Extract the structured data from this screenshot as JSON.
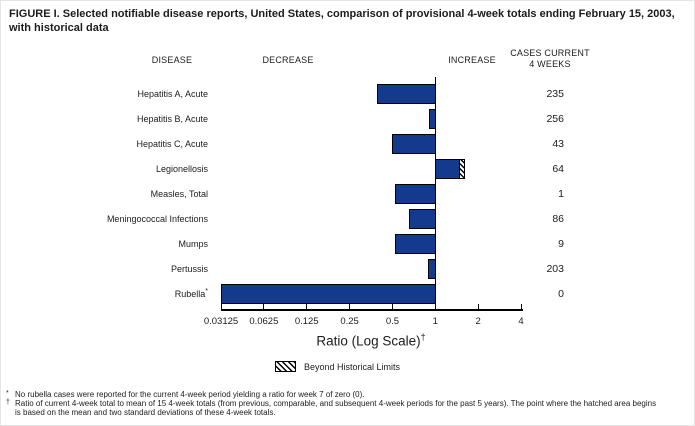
{
  "figure": {
    "title_line1": "FIGURE I. Selected notifiable disease reports, United States, comparison of provisional 4-week totals ending February 15, 2003,",
    "title_line2": "with historical data"
  },
  "columns": {
    "disease": "DISEASE",
    "decrease": "DECREASE",
    "increase": "INCREASE",
    "cases_line1": "CASES CURRENT",
    "cases_line2": "4 WEEKS"
  },
  "chart_data": {
    "type": "bar",
    "orientation": "horizontal",
    "scale": "log2",
    "title": "FIGURE I. Selected notifiable disease reports, United States, comparison of provisional 4-week totals ending February 15, 2003, with historical data",
    "xlabel": "Ratio (Log Scale)",
    "xlabel_superscript": "†",
    "xlim": [
      0.03125,
      4
    ],
    "baseline_ratio": 1,
    "axis": {
      "ticks": [
        0.03125,
        0.0625,
        0.125,
        0.25,
        0.5,
        1,
        2,
        4
      ],
      "tick_labels": [
        "0.03125",
        "0.0625",
        "0.125",
        "0.25",
        "0.5",
        "1",
        "2",
        "4"
      ]
    },
    "rows": [
      {
        "disease": "Hepatitis A, Acute",
        "ratio": 0.39,
        "cases": 235
      },
      {
        "disease": "Hepatitis B, Acute",
        "ratio": 0.91,
        "cases": 256
      },
      {
        "disease": "Hepatitis C, Acute",
        "ratio": 0.5,
        "cases": 43
      },
      {
        "disease": "Legionellosis",
        "ratio": 1.63,
        "hatch_start": 1.5,
        "cases": 64
      },
      {
        "disease": "Measles, Total",
        "ratio": 0.52,
        "cases": 1
      },
      {
        "disease": "Meningococcal Infections",
        "ratio": 0.65,
        "cases": 86
      },
      {
        "disease": "Mumps",
        "ratio": 0.52,
        "cases": 9
      },
      {
        "disease": "Pertussis",
        "ratio": 0.89,
        "cases": 203
      },
      {
        "disease": "Rubella",
        "marker": "*",
        "ratio": 0,
        "cases": 0
      }
    ],
    "bar_color": "#133a8d",
    "legend": {
      "label": "Beyond Historical Limits",
      "swatch": "diagonal-hatch",
      "position": "bottom-center"
    }
  },
  "footnotes": [
    {
      "marker": "*",
      "lines": [
        "No rubella cases were reported for the current 4-week period yielding a ratio for week 7 of zero (0)."
      ]
    },
    {
      "marker": "†",
      "lines": [
        "Ratio of current 4-week total to mean of 15 4-week totals (from previous, comparable, and subsequent 4-week periods for the past 5 years). The point where the hatched area begins",
        "is based on the mean and two standard deviations of these 4-week totals."
      ]
    }
  ]
}
